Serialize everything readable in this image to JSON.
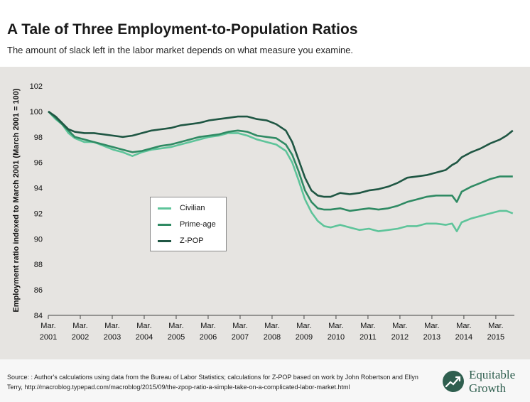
{
  "title": "A Tale of Three Employment-to-Population Ratios",
  "subtitle": "The amount of slack left in the labor market depends on what measure you examine.",
  "source": "Source: : Author's calculations using data from the Bureau of Labor Statistics; calculations for Z-POP based on work by John Robertson and Ellyn Terry, http://macroblog.typepad.com/macroblog/2015/09/the-zpop-ratio-a-simple-take-on-a-complicated-labor-market.html",
  "logo": {
    "line1": "Equitable",
    "line2": "Growth",
    "color": "#2f5f4f"
  },
  "colors": {
    "civilian": "#5ec49a",
    "prime_age": "#2f8a63",
    "zpop": "#1f5643",
    "axis": "#444444",
    "background": "#e6e4e1"
  },
  "chart_data": {
    "type": "line",
    "title": "A Tale of Three Employment-to-Population Ratios",
    "subtitle": "The amount of slack left in the labor market depends on what measure you examine.",
    "ylabel": "Employment ratio indexed to March 2001 (March 2001 = 100)",
    "xlabel": "",
    "ylim": [
      84,
      102
    ],
    "yticks": [
      84,
      86,
      88,
      90,
      92,
      94,
      96,
      98,
      100,
      102
    ],
    "xlim": [
      2001.17,
      2015.75
    ],
    "xticks": [
      {
        "x": 2001.17,
        "line1": "Mar.",
        "line2": "2001"
      },
      {
        "x": 2002.17,
        "line1": "Mar.",
        "line2": "2002"
      },
      {
        "x": 2003.17,
        "line1": "Mar.",
        "line2": "2003"
      },
      {
        "x": 2004.17,
        "line1": "Mar.",
        "line2": "2004"
      },
      {
        "x": 2005.17,
        "line1": "Mar.",
        "line2": "2005"
      },
      {
        "x": 2006.17,
        "line1": "Mar.",
        "line2": "2006"
      },
      {
        "x": 2007.17,
        "line1": "Mar.",
        "line2": "2007"
      },
      {
        "x": 2008.17,
        "line1": "Mar.",
        "line2": "2008"
      },
      {
        "x": 2009.17,
        "line1": "Mar.",
        "line2": "2009"
      },
      {
        "x": 2010.17,
        "line1": "Mar.",
        "line2": "2010"
      },
      {
        "x": 2011.17,
        "line1": "Mar.",
        "line2": "2011"
      },
      {
        "x": 2012.17,
        "line1": "Mar.",
        "line2": "2012"
      },
      {
        "x": 2013.17,
        "line1": "Mar.",
        "line2": "2013"
      },
      {
        "x": 2014.17,
        "line1": "Mar.",
        "line2": "2014"
      },
      {
        "x": 2015.17,
        "line1": "Mar.",
        "line2": "2015"
      }
    ],
    "grid": false,
    "legend_position": "center-left",
    "series": [
      {
        "name": "Civilian",
        "color": "#5ec49a",
        "points": [
          [
            2001.17,
            100
          ],
          [
            2001.4,
            99.4
          ],
          [
            2001.6,
            99.0
          ],
          [
            2001.8,
            98.3
          ],
          [
            2002.0,
            97.9
          ],
          [
            2002.3,
            97.6
          ],
          [
            2002.6,
            97.6
          ],
          [
            2002.9,
            97.3
          ],
          [
            2003.2,
            97.0
          ],
          [
            2003.5,
            96.8
          ],
          [
            2003.8,
            96.5
          ],
          [
            2004.1,
            96.8
          ],
          [
            2004.4,
            97.0
          ],
          [
            2004.7,
            97.1
          ],
          [
            2005.0,
            97.2
          ],
          [
            2005.3,
            97.4
          ],
          [
            2005.6,
            97.6
          ],
          [
            2005.9,
            97.8
          ],
          [
            2006.2,
            98.0
          ],
          [
            2006.5,
            98.1
          ],
          [
            2006.8,
            98.3
          ],
          [
            2007.1,
            98.3
          ],
          [
            2007.4,
            98.1
          ],
          [
            2007.7,
            97.8
          ],
          [
            2008.0,
            97.6
          ],
          [
            2008.3,
            97.4
          ],
          [
            2008.6,
            96.9
          ],
          [
            2008.8,
            96.0
          ],
          [
            2009.0,
            94.6
          ],
          [
            2009.2,
            93.1
          ],
          [
            2009.4,
            92.1
          ],
          [
            2009.6,
            91.4
          ],
          [
            2009.8,
            91.0
          ],
          [
            2010.0,
            90.9
          ],
          [
            2010.3,
            91.1
          ],
          [
            2010.6,
            90.9
          ],
          [
            2010.9,
            90.7
          ],
          [
            2011.2,
            90.8
          ],
          [
            2011.5,
            90.6
          ],
          [
            2011.8,
            90.7
          ],
          [
            2012.1,
            90.8
          ],
          [
            2012.4,
            91.0
          ],
          [
            2012.7,
            91.0
          ],
          [
            2013.0,
            91.2
          ],
          [
            2013.3,
            91.2
          ],
          [
            2013.6,
            91.1
          ],
          [
            2013.8,
            91.2
          ],
          [
            2013.95,
            90.6
          ],
          [
            2014.1,
            91.3
          ],
          [
            2014.4,
            91.6
          ],
          [
            2014.7,
            91.8
          ],
          [
            2015.0,
            92.0
          ],
          [
            2015.3,
            92.2
          ],
          [
            2015.5,
            92.2
          ],
          [
            2015.7,
            92.0
          ]
        ]
      },
      {
        "name": "Prime-age",
        "color": "#2f8a63",
        "points": [
          [
            2001.17,
            100
          ],
          [
            2001.4,
            99.5
          ],
          [
            2001.6,
            99.0
          ],
          [
            2001.8,
            98.5
          ],
          [
            2002.0,
            98.0
          ],
          [
            2002.3,
            97.8
          ],
          [
            2002.6,
            97.6
          ],
          [
            2002.9,
            97.4
          ],
          [
            2003.2,
            97.2
          ],
          [
            2003.5,
            97.0
          ],
          [
            2003.8,
            96.8
          ],
          [
            2004.1,
            96.9
          ],
          [
            2004.4,
            97.1
          ],
          [
            2004.7,
            97.3
          ],
          [
            2005.0,
            97.4
          ],
          [
            2005.3,
            97.6
          ],
          [
            2005.6,
            97.8
          ],
          [
            2005.9,
            98.0
          ],
          [
            2006.2,
            98.1
          ],
          [
            2006.5,
            98.2
          ],
          [
            2006.8,
            98.4
          ],
          [
            2007.1,
            98.5
          ],
          [
            2007.4,
            98.4
          ],
          [
            2007.7,
            98.1
          ],
          [
            2008.0,
            98.0
          ],
          [
            2008.3,
            97.9
          ],
          [
            2008.6,
            97.4
          ],
          [
            2008.8,
            96.6
          ],
          [
            2009.0,
            95.3
          ],
          [
            2009.2,
            93.8
          ],
          [
            2009.4,
            92.9
          ],
          [
            2009.6,
            92.4
          ],
          [
            2009.8,
            92.3
          ],
          [
            2010.0,
            92.3
          ],
          [
            2010.3,
            92.4
          ],
          [
            2010.6,
            92.2
          ],
          [
            2010.9,
            92.3
          ],
          [
            2011.2,
            92.4
          ],
          [
            2011.5,
            92.3
          ],
          [
            2011.8,
            92.4
          ],
          [
            2012.1,
            92.6
          ],
          [
            2012.4,
            92.9
          ],
          [
            2012.7,
            93.1
          ],
          [
            2013.0,
            93.3
          ],
          [
            2013.3,
            93.4
          ],
          [
            2013.6,
            93.4
          ],
          [
            2013.8,
            93.4
          ],
          [
            2013.95,
            92.9
          ],
          [
            2014.1,
            93.7
          ],
          [
            2014.4,
            94.1
          ],
          [
            2014.7,
            94.4
          ],
          [
            2015.0,
            94.7
          ],
          [
            2015.3,
            94.9
          ],
          [
            2015.5,
            94.9
          ],
          [
            2015.7,
            94.9
          ]
        ]
      },
      {
        "name": "Z-POP",
        "color": "#1f5643",
        "points": [
          [
            2001.17,
            100
          ],
          [
            2001.4,
            99.6
          ],
          [
            2001.6,
            99.1
          ],
          [
            2001.8,
            98.6
          ],
          [
            2002.0,
            98.4
          ],
          [
            2002.3,
            98.3
          ],
          [
            2002.6,
            98.3
          ],
          [
            2002.9,
            98.2
          ],
          [
            2003.2,
            98.1
          ],
          [
            2003.5,
            98.0
          ],
          [
            2003.8,
            98.1
          ],
          [
            2004.1,
            98.3
          ],
          [
            2004.4,
            98.5
          ],
          [
            2004.7,
            98.6
          ],
          [
            2005.0,
            98.7
          ],
          [
            2005.3,
            98.9
          ],
          [
            2005.6,
            99.0
          ],
          [
            2005.9,
            99.1
          ],
          [
            2006.2,
            99.3
          ],
          [
            2006.5,
            99.4
          ],
          [
            2006.8,
            99.5
          ],
          [
            2007.1,
            99.6
          ],
          [
            2007.4,
            99.6
          ],
          [
            2007.7,
            99.4
          ],
          [
            2008.0,
            99.3
          ],
          [
            2008.3,
            99.0
          ],
          [
            2008.6,
            98.5
          ],
          [
            2008.8,
            97.6
          ],
          [
            2009.0,
            96.2
          ],
          [
            2009.2,
            94.8
          ],
          [
            2009.4,
            93.8
          ],
          [
            2009.6,
            93.4
          ],
          [
            2009.8,
            93.3
          ],
          [
            2010.0,
            93.3
          ],
          [
            2010.3,
            93.6
          ],
          [
            2010.6,
            93.5
          ],
          [
            2010.9,
            93.6
          ],
          [
            2011.2,
            93.8
          ],
          [
            2011.5,
            93.9
          ],
          [
            2011.8,
            94.1
          ],
          [
            2012.1,
            94.4
          ],
          [
            2012.4,
            94.8
          ],
          [
            2012.7,
            94.9
          ],
          [
            2013.0,
            95.0
          ],
          [
            2013.3,
            95.2
          ],
          [
            2013.6,
            95.4
          ],
          [
            2013.8,
            95.8
          ],
          [
            2013.95,
            96.0
          ],
          [
            2014.1,
            96.4
          ],
          [
            2014.4,
            96.8
          ],
          [
            2014.7,
            97.1
          ],
          [
            2015.0,
            97.5
          ],
          [
            2015.3,
            97.8
          ],
          [
            2015.5,
            98.1
          ],
          [
            2015.7,
            98.5
          ]
        ]
      }
    ]
  }
}
